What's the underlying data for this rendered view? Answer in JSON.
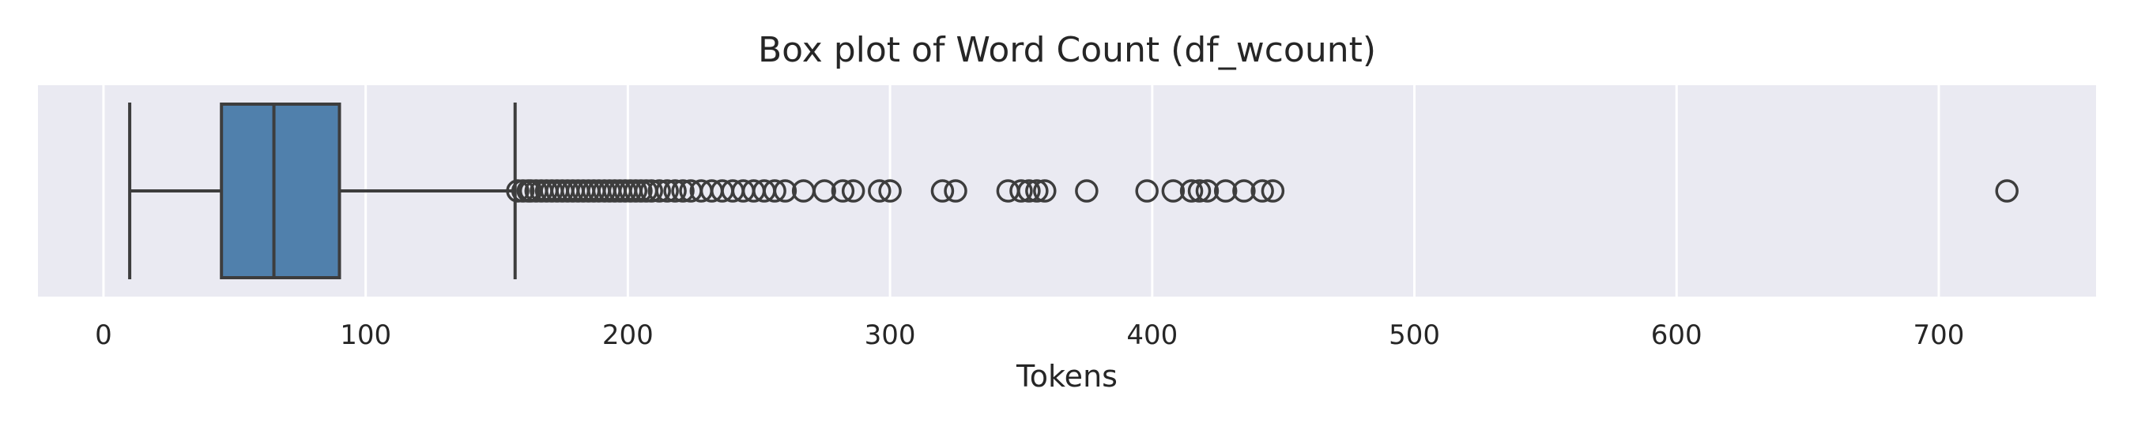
{
  "chart_data": {
    "type": "box",
    "title": "Box plot of Word Count (df_wcount)",
    "xlabel": "Tokens",
    "ylabel": "",
    "xlim": [
      -25,
      760
    ],
    "xticks": [
      0,
      100,
      200,
      300,
      400,
      500,
      600,
      700
    ],
    "grid": true,
    "orientation": "horizontal",
    "colors": {
      "box": "#5080ac",
      "line": "#3d3d3d",
      "background": "#eaeaf2",
      "grid": "#ffffff"
    },
    "box": {
      "whisker_low": 10,
      "q1": 45,
      "median": 65,
      "q3": 90,
      "whisker_high": 157,
      "outliers": [
        158,
        160,
        162,
        163,
        165,
        167,
        169,
        171,
        173,
        175,
        177,
        179,
        181,
        183,
        185,
        187,
        189,
        191,
        193,
        195,
        197,
        199,
        201,
        203,
        205,
        207,
        209,
        212,
        215,
        218,
        221,
        224,
        228,
        232,
        236,
        240,
        244,
        248,
        252,
        256,
        260,
        267,
        275,
        282,
        286,
        296,
        300,
        320,
        325,
        345,
        350,
        353,
        356,
        359,
        375,
        398,
        408,
        415,
        418,
        421,
        428,
        435,
        442,
        446,
        726
      ]
    }
  }
}
